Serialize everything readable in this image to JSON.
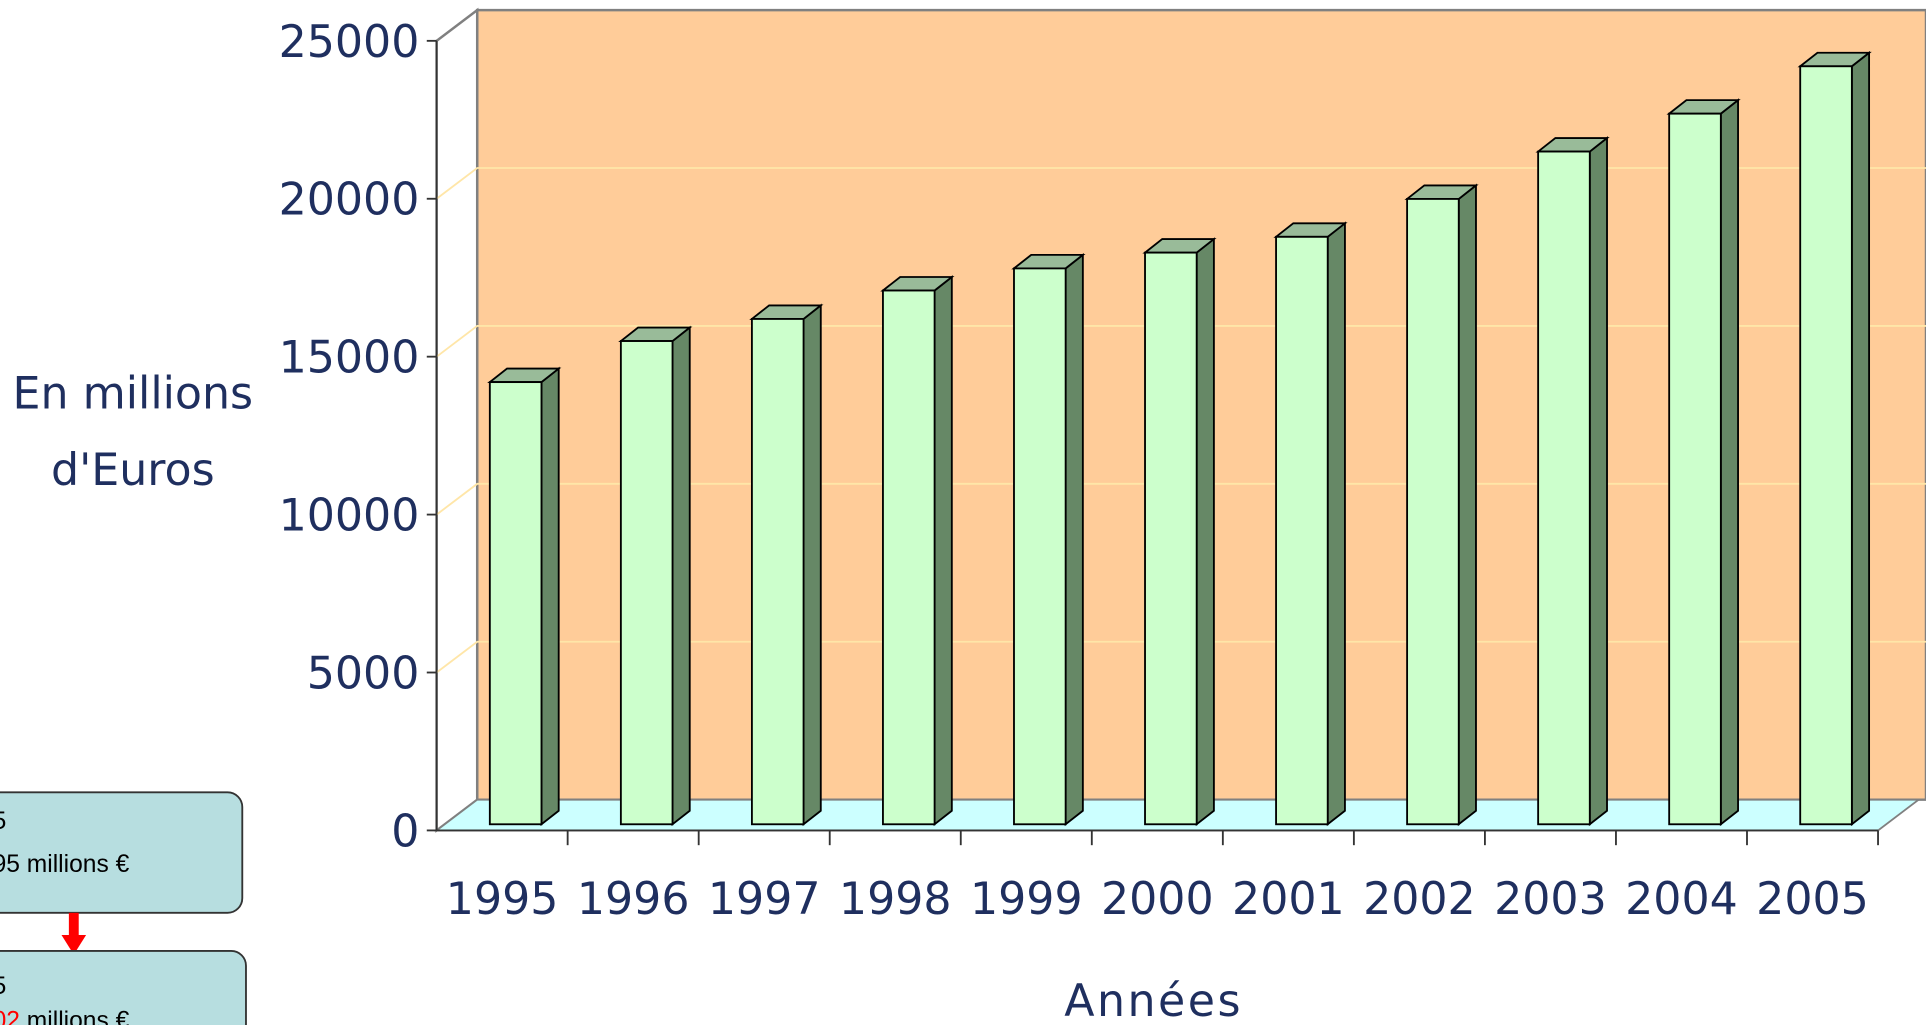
{
  "chart_data": {
    "type": "bar3d",
    "y_label": [
      "En millions",
      "d'Euros"
    ],
    "x_label": "Années",
    "categories": [
      "1995",
      "1996",
      "1997",
      "1998",
      "1999",
      "2000",
      "2001",
      "2002",
      "2003",
      "2004",
      "2005"
    ],
    "values": [
      14000,
      15300,
      16000,
      16900,
      17600,
      18100,
      18600,
      19800,
      21300,
      22500,
      24000
    ],
    "color": "#ccffcc",
    "ylim": [
      0,
      25000
    ],
    "yticks": [
      0,
      5000,
      10000,
      15000,
      20000,
      25000
    ],
    "grid": true,
    "wall_color": "#ffcc99",
    "floor_color": "#ccffff"
  },
  "callouts": [
    {
      "lines": [
        "5",
        "95 millions €"
      ]
    },
    {
      "lines": [
        "5"
      ],
      "highlight": "02",
      "rest": "millions €"
    }
  ]
}
